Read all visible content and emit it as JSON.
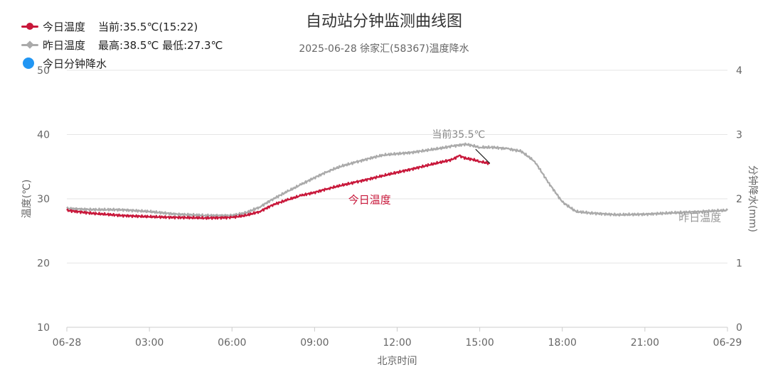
{
  "colors": {
    "today": "#c8173a",
    "yesterday": "#aaaaaa",
    "rain": "#2196f3",
    "grid": "#e6e6e6",
    "axis": "#999999"
  },
  "title": "自动站分钟监测曲线图",
  "subtitle": "2025-06-28 徐家汇(58367)温度降水",
  "legend": [
    {
      "label": "今日温度",
      "info": "当前:35.5℃(15:22)"
    },
    {
      "label": "昨日温度",
      "info": "最高:38.5℃ 最低:27.3℃"
    },
    {
      "label": "今日分钟降水",
      "info": ""
    }
  ],
  "chart_data": {
    "type": "line",
    "title": "自动站分钟监测曲线图",
    "subtitle": "2025-06-28 徐家汇(58367)温度降水",
    "xlabel": "北京时间",
    "ylabel": "温度(℃)",
    "y2label": "分钟降水(mm)",
    "xlim": [
      0,
      24
    ],
    "ylim": [
      10,
      50
    ],
    "y2lim": [
      0,
      4
    ],
    "x_ticks": [
      "06-28",
      "03:00",
      "06:00",
      "09:00",
      "12:00",
      "15:00",
      "18:00",
      "21:00",
      "06-29"
    ],
    "y_ticks": [
      "10",
      "20",
      "30",
      "40",
      "50"
    ],
    "y2_ticks": [
      "0",
      "1",
      "2",
      "3",
      "4"
    ],
    "grid": true,
    "legend_position": "top-left",
    "series": [
      {
        "name": "今日温度",
        "color": "#c8173a",
        "x": [
          "00:00",
          "01:00",
          "02:00",
          "03:00",
          "04:00",
          "05:00",
          "06:00",
          "06:30",
          "07:00",
          "07:30",
          "08:00",
          "08:30",
          "09:00",
          "09:30",
          "10:00",
          "10:30",
          "11:00",
          "11:30",
          "12:00",
          "12:30",
          "13:00",
          "13:30",
          "14:00",
          "14:15",
          "14:30",
          "14:45",
          "15:00",
          "15:22"
        ],
        "values": [
          28.2,
          27.7,
          27.4,
          27.2,
          27.1,
          27.0,
          27.1,
          27.4,
          28.0,
          29.1,
          29.8,
          30.5,
          31.0,
          31.6,
          32.1,
          32.6,
          33.1,
          33.6,
          34.1,
          34.6,
          35.1,
          35.6,
          36.1,
          36.7,
          36.3,
          36.1,
          35.8,
          35.5
        ],
        "end_annotation": "当前35.5℃",
        "inline_label": "今日温度"
      },
      {
        "name": "昨日温度",
        "color": "#aaaaaa",
        "x": [
          "00:00",
          "01:00",
          "02:00",
          "03:00",
          "04:00",
          "05:00",
          "06:00",
          "06:30",
          "07:00",
          "07:30",
          "08:00",
          "08:30",
          "09:00",
          "09:30",
          "10:00",
          "10:30",
          "11:00",
          "11:30",
          "12:00",
          "12:30",
          "13:00",
          "13:30",
          "14:00",
          "14:30",
          "15:00",
          "15:30",
          "16:00",
          "16:30",
          "17:00",
          "17:30",
          "18:00",
          "18:30",
          "19:00",
          "20:00",
          "21:00",
          "22:00",
          "23:00",
          "24:00"
        ],
        "values": [
          28.5,
          28.3,
          28.3,
          28.0,
          27.6,
          27.4,
          27.4,
          27.8,
          28.7,
          30.0,
          31.1,
          32.2,
          33.3,
          34.3,
          35.1,
          35.7,
          36.3,
          36.8,
          37.0,
          37.2,
          37.5,
          37.8,
          38.2,
          38.5,
          38.0,
          38.0,
          37.8,
          37.4,
          35.8,
          32.5,
          29.5,
          28.0,
          27.8,
          27.5,
          27.6,
          27.8,
          28.0,
          28.2
        ],
        "inline_label": "昨日温度"
      },
      {
        "name": "今日分钟降水",
        "color": "#2196f3",
        "x": [],
        "values": []
      }
    ]
  }
}
